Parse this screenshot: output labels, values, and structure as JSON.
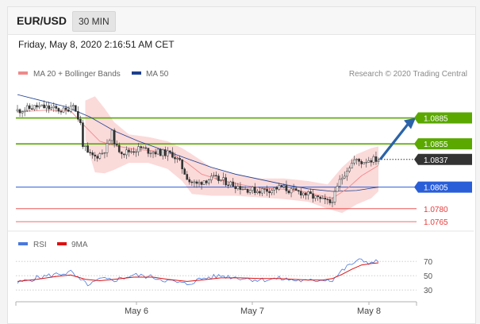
{
  "header": {
    "pair": "EUR/USD",
    "timeframe": "30 MIN",
    "datetime": "Friday, May 8, 2020 2:16:51 AM CET"
  },
  "legend": {
    "ma20": "MA 20 + Bollinger Bands",
    "ma50": "MA 50",
    "credit": "Research © 2020 Trading Central"
  },
  "rsi_legend": {
    "rsi": "RSI",
    "ma9": "9MA"
  },
  "colors": {
    "resistance": "#5aa800",
    "pivot": "#2a5ed8",
    "support": "#e83a3a",
    "current": "#333333",
    "ma20": "#ef8a8a",
    "ma50": "#1d3f8f",
    "bollinger": "#fbdada",
    "rsi": "#4a78dc",
    "rsi_ma": "#dd1111"
  },
  "chart_data": [
    {
      "type": "candlestick",
      "x_labels": [
        "May 6",
        "May 7",
        "May 8"
      ],
      "ylim": [
        1.0755,
        1.0925
      ],
      "levels": [
        {
          "value": 1.0885,
          "label": "1.0885",
          "kind": "resistance"
        },
        {
          "value": 1.0855,
          "label": "1.0855",
          "kind": "resistance"
        },
        {
          "value": 1.0837,
          "label": "1.0837",
          "kind": "current"
        },
        {
          "value": 1.0805,
          "label": "1.0805",
          "kind": "pivot"
        },
        {
          "value": 1.078,
          "label": "1.0780",
          "kind": "support"
        },
        {
          "value": 1.0765,
          "label": "1.0765",
          "kind": "support"
        }
      ],
      "price_path": [
        [
          0,
          1.0893
        ],
        [
          4,
          1.0895
        ],
        [
          9,
          1.0898
        ],
        [
          13,
          1.0897
        ],
        [
          17,
          1.0895
        ],
        [
          21,
          1.0893
        ],
        [
          24,
          1.0903
        ],
        [
          25,
          1.0892
        ],
        [
          27,
          1.0878
        ],
        [
          28,
          1.0855
        ],
        [
          30,
          1.0843
        ],
        [
          33,
          1.084
        ],
        [
          36,
          1.0845
        ],
        [
          38,
          1.0852
        ],
        [
          40,
          1.0867
        ],
        [
          42,
          1.085
        ],
        [
          45,
          1.0845
        ],
        [
          48,
          1.0847
        ],
        [
          52,
          1.085
        ],
        [
          55,
          1.0847
        ],
        [
          60,
          1.0845
        ],
        [
          65,
          1.0843
        ],
        [
          68,
          1.0833
        ],
        [
          70,
          1.0822
        ],
        [
          72,
          1.0812
        ],
        [
          75,
          1.0808
        ],
        [
          78,
          1.0813
        ],
        [
          82,
          1.0815
        ],
        [
          86,
          1.0812
        ],
        [
          90,
          1.0808
        ],
        [
          95,
          1.0803
        ],
        [
          100,
          1.0801
        ],
        [
          105,
          1.0802
        ],
        [
          110,
          1.0805
        ],
        [
          114,
          1.08
        ],
        [
          118,
          1.0799
        ],
        [
          122,
          1.0795
        ],
        [
          126,
          1.079
        ],
        [
          130,
          1.0787
        ],
        [
          132,
          1.0796
        ],
        [
          134,
          1.0812
        ],
        [
          137,
          1.0826
        ],
        [
          140,
          1.0836
        ],
        [
          143,
          1.0834
        ],
        [
          146,
          1.0837
        ],
        [
          149,
          1.0837
        ]
      ],
      "ma20_path": [
        [
          0,
          1.0892
        ],
        [
          12,
          1.0894
        ],
        [
          22,
          1.0893
        ],
        [
          28,
          1.0875
        ],
        [
          34,
          1.0858
        ],
        [
          40,
          1.0853
        ],
        [
          48,
          1.0849
        ],
        [
          56,
          1.0847
        ],
        [
          64,
          1.0843
        ],
        [
          70,
          1.0833
        ],
        [
          76,
          1.082
        ],
        [
          84,
          1.0813
        ],
        [
          92,
          1.0808
        ],
        [
          100,
          1.0804
        ],
        [
          108,
          1.0803
        ],
        [
          116,
          1.0801
        ],
        [
          124,
          1.0796
        ],
        [
          130,
          1.0792
        ],
        [
          136,
          1.0803
        ],
        [
          142,
          1.0818
        ],
        [
          149,
          1.083
        ]
      ],
      "ma50_path": [
        [
          0,
          1.0912
        ],
        [
          10,
          1.0905
        ],
        [
          20,
          1.0898
        ],
        [
          30,
          1.0886
        ],
        [
          40,
          1.087
        ],
        [
          50,
          1.0858
        ],
        [
          60,
          1.0848
        ],
        [
          70,
          1.0838
        ],
        [
          80,
          1.0828
        ],
        [
          90,
          1.082
        ],
        [
          100,
          1.0814
        ],
        [
          110,
          1.0808
        ],
        [
          120,
          1.0803
        ],
        [
          130,
          1.08
        ],
        [
          140,
          1.0801
        ],
        [
          149,
          1.0805
        ]
      ],
      "bollinger_upper": [
        [
          28,
          1.0905
        ],
        [
          32,
          1.091
        ],
        [
          36,
          1.0896
        ],
        [
          40,
          1.088
        ],
        [
          46,
          1.0866
        ],
        [
          54,
          1.0863
        ],
        [
          62,
          1.0858
        ],
        [
          68,
          1.085
        ],
        [
          72,
          1.0843
        ],
        [
          80,
          1.0828
        ],
        [
          90,
          1.082
        ],
        [
          100,
          1.0815
        ],
        [
          110,
          1.0815
        ],
        [
          120,
          1.0812
        ],
        [
          128,
          1.0808
        ],
        [
          134,
          1.0828
        ],
        [
          140,
          1.0843
        ],
        [
          146,
          1.085
        ],
        [
          149,
          1.0852
        ]
      ],
      "bollinger_lower": [
        [
          28,
          1.086
        ],
        [
          32,
          1.0822
        ],
        [
          36,
          1.0821
        ],
        [
          40,
          1.0825
        ],
        [
          46,
          1.0833
        ],
        [
          54,
          1.0833
        ],
        [
          62,
          1.0826
        ],
        [
          68,
          1.0812
        ],
        [
          72,
          1.0797
        ],
        [
          80,
          1.0795
        ],
        [
          90,
          1.0795
        ],
        [
          100,
          1.0793
        ],
        [
          110,
          1.0791
        ],
        [
          120,
          1.0788
        ],
        [
          128,
          1.078
        ],
        [
          134,
          1.0775
        ],
        [
          140,
          1.0785
        ],
        [
          146,
          1.0792
        ],
        [
          149,
          1.08
        ]
      ],
      "forecast": {
        "from": 1.0837,
        "to": 1.0885
      }
    },
    {
      "type": "line",
      "title": "RSI",
      "yticks": [
        70,
        50,
        30
      ],
      "ylim": [
        18,
        78
      ],
      "series": [
        {
          "name": "RSI",
          "values": [
            [
              0,
              40
            ],
            [
              8,
              47
            ],
            [
              16,
              52
            ],
            [
              22,
              55
            ],
            [
              26,
              43
            ],
            [
              30,
              37
            ],
            [
              34,
              45
            ],
            [
              40,
              44
            ],
            [
              48,
              51
            ],
            [
              56,
              48
            ],
            [
              62,
              43
            ],
            [
              70,
              38
            ],
            [
              76,
              46
            ],
            [
              84,
              50
            ],
            [
              92,
              47
            ],
            [
              100,
              44
            ],
            [
              108,
              46
            ],
            [
              114,
              44
            ],
            [
              120,
              42
            ],
            [
              126,
              45
            ],
            [
              130,
              44
            ],
            [
              134,
              57
            ],
            [
              138,
              67
            ],
            [
              142,
              72
            ],
            [
              146,
              68
            ],
            [
              149,
              70
            ]
          ]
        },
        {
          "name": "9MA",
          "values": [
            [
              0,
              42
            ],
            [
              8,
              45
            ],
            [
              16,
              49
            ],
            [
              22,
              51
            ],
            [
              28,
              45
            ],
            [
              34,
              43
            ],
            [
              40,
              45
            ],
            [
              48,
              48
            ],
            [
              56,
              48
            ],
            [
              62,
              45
            ],
            [
              70,
              42
            ],
            [
              76,
              44
            ],
            [
              84,
              47
            ],
            [
              92,
              47
            ],
            [
              100,
              46
            ],
            [
              108,
              46
            ],
            [
              114,
              45
            ],
            [
              120,
              44
            ],
            [
              126,
              44
            ],
            [
              130,
              46
            ],
            [
              134,
              52
            ],
            [
              138,
              59
            ],
            [
              142,
              65
            ],
            [
              146,
              67
            ],
            [
              149,
              68
            ]
          ]
        }
      ]
    }
  ]
}
